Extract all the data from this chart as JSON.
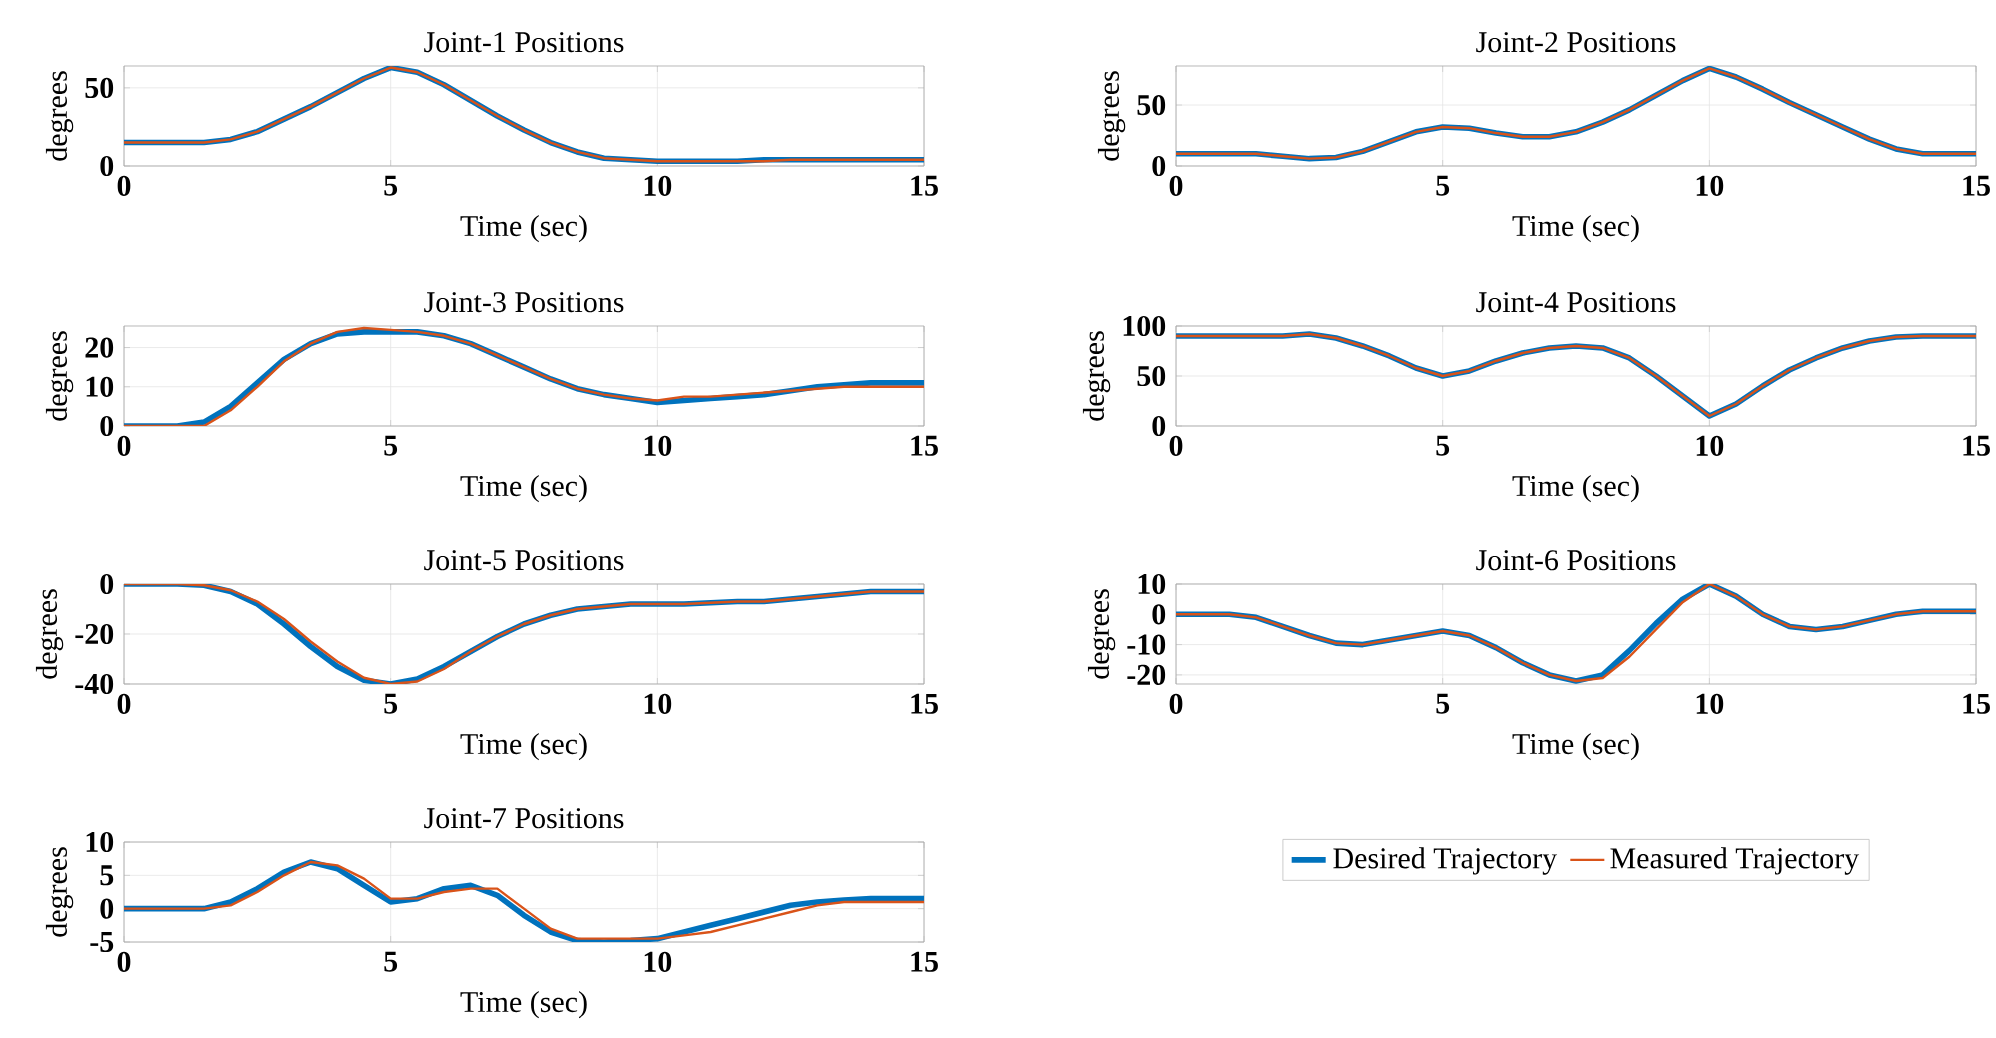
{
  "chart_data": [
    {
      "type": "line",
      "title": "Joint-1 Positions",
      "xlabel": "Time (sec)",
      "ylabel": "degrees",
      "xlim": [
        0,
        15
      ],
      "ylim": [
        0,
        64
      ],
      "xticks": [
        0,
        5,
        10,
        15
      ],
      "yticks": [
        0,
        50
      ],
      "grid": true,
      "x": [
        0,
        0.5,
        1,
        1.5,
        2,
        2.5,
        3,
        3.5,
        4,
        4.5,
        5,
        5.5,
        6,
        6.5,
        7,
        7.5,
        8,
        8.5,
        9,
        9.5,
        10,
        10.5,
        11,
        11.5,
        12,
        12.5,
        13,
        13.5,
        14,
        14.5,
        15
      ],
      "series": [
        {
          "color": "#0072bd",
          "values": [
            15,
            15,
            15,
            15,
            17,
            22,
            30,
            38,
            47,
            56,
            63,
            60,
            52,
            42,
            32,
            23,
            15,
            9,
            5,
            4,
            3,
            3,
            3,
            3,
            4,
            4,
            4,
            4,
            4,
            4,
            4
          ]
        },
        {
          "color": "#d95319",
          "values": [
            15,
            15,
            15,
            15,
            17,
            22,
            30,
            38,
            47,
            56,
            63,
            60,
            52,
            42,
            32,
            23,
            15,
            9,
            5,
            4,
            3,
            3,
            3,
            3,
            3,
            4,
            4,
            4,
            4,
            4,
            4
          ]
        }
      ]
    },
    {
      "type": "line",
      "title": "Joint-2 Positions",
      "xlabel": "Time (sec)",
      "ylabel": "degrees",
      "xlim": [
        0,
        15
      ],
      "ylim": [
        0,
        82
      ],
      "xticks": [
        0,
        5,
        10,
        15
      ],
      "yticks": [
        0,
        50
      ],
      "grid": true,
      "x": [
        0,
        0.5,
        1,
        1.5,
        2,
        2.5,
        3,
        3.5,
        4,
        4.5,
        5,
        5.5,
        6,
        6.5,
        7,
        7.5,
        8,
        8.5,
        9,
        9.5,
        10,
        10.5,
        11,
        11.5,
        12,
        12.5,
        13,
        13.5,
        14,
        14.5,
        15
      ],
      "series": [
        {
          "color": "#0072bd",
          "values": [
            10,
            10,
            10,
            10,
            8,
            6,
            7,
            12,
            20,
            28,
            32,
            31,
            27,
            24,
            24,
            28,
            36,
            46,
            58,
            70,
            80,
            73,
            63,
            52,
            42,
            32,
            22,
            14,
            10,
            10,
            10
          ]
        },
        {
          "color": "#d95319",
          "values": [
            10,
            10,
            10,
            10,
            8,
            6,
            7,
            12,
            20,
            28,
            32,
            31,
            27,
            24,
            24,
            28,
            36,
            46,
            58,
            70,
            80,
            73,
            63,
            52,
            42,
            32,
            22,
            14,
            10,
            10,
            10
          ]
        }
      ]
    },
    {
      "type": "line",
      "title": "Joint-3 Positions",
      "xlabel": "Time (sec)",
      "ylabel": "degrees",
      "xlim": [
        0,
        15
      ],
      "ylim": [
        0,
        25.5
      ],
      "xticks": [
        0,
        5,
        10,
        15
      ],
      "yticks": [
        0,
        10,
        20
      ],
      "grid": true,
      "x": [
        0,
        0.5,
        1,
        1.5,
        2,
        2.5,
        3,
        3.5,
        4,
        4.5,
        5,
        5.5,
        6,
        6.5,
        7,
        7.5,
        8,
        8.5,
        9,
        9.5,
        10,
        10.5,
        11,
        11.5,
        12,
        12.5,
        13,
        13.5,
        14,
        14.5,
        15
      ],
      "series": [
        {
          "color": "#0072bd",
          "values": [
            0,
            0,
            0,
            1,
            5,
            11,
            17,
            21,
            23.5,
            24,
            24,
            24,
            23,
            21,
            18,
            15,
            12,
            9.5,
            8,
            7,
            6,
            6.5,
            7,
            7.5,
            8,
            9,
            10,
            10.5,
            11,
            11,
            11
          ]
        },
        {
          "color": "#d95319",
          "values": [
            0,
            0,
            0,
            0,
            4,
            10,
            16.5,
            21,
            24,
            25,
            24.5,
            24,
            23,
            21,
            18,
            15,
            12,
            9.5,
            8,
            7,
            6.5,
            7.5,
            7.5,
            8,
            8.5,
            9,
            9.5,
            10,
            10,
            10,
            10
          ]
        }
      ]
    },
    {
      "type": "line",
      "title": "Joint-4 Positions",
      "xlabel": "Time (sec)",
      "ylabel": "degrees",
      "xlim": [
        0,
        15
      ],
      "ylim": [
        0,
        100
      ],
      "xticks": [
        0,
        5,
        10,
        15
      ],
      "yticks": [
        0,
        50,
        100
      ],
      "grid": true,
      "x": [
        0,
        0.5,
        1,
        1.5,
        2,
        2.5,
        3,
        3.5,
        4,
        4.5,
        5,
        5.5,
        6,
        6.5,
        7,
        7.5,
        8,
        8.5,
        9,
        9.5,
        10,
        10.5,
        11,
        11.5,
        12,
        12.5,
        13,
        13.5,
        14,
        14.5,
        15
      ],
      "series": [
        {
          "color": "#0072bd",
          "values": [
            90,
            90,
            90,
            90,
            90,
            92,
            88,
            80,
            70,
            58,
            50,
            55,
            65,
            73,
            78,
            80,
            78,
            68,
            50,
            30,
            10,
            22,
            40,
            56,
            68,
            78,
            85,
            89,
            90,
            90,
            90
          ]
        },
        {
          "color": "#d95319",
          "values": [
            90,
            90,
            90,
            90,
            90,
            92,
            88,
            80,
            70,
            58,
            50,
            55,
            65,
            73,
            78,
            80,
            78,
            68,
            50,
            30,
            10,
            22,
            40,
            56,
            68,
            78,
            85,
            89,
            90,
            90,
            90
          ]
        }
      ]
    },
    {
      "type": "line",
      "title": "Joint-5 Positions",
      "xlabel": "Time (sec)",
      "ylabel": "degrees",
      "xlim": [
        0,
        15
      ],
      "ylim": [
        -40,
        0
      ],
      "xticks": [
        0,
        5,
        10,
        15
      ],
      "yticks": [
        -40,
        -20,
        0
      ],
      "grid": true,
      "x": [
        0,
        0.5,
        1,
        1.5,
        2,
        2.5,
        3,
        3.5,
        4,
        4.5,
        5,
        5.5,
        6,
        6.5,
        7,
        7.5,
        8,
        8.5,
        9,
        9.5,
        10,
        10.5,
        11,
        11.5,
        12,
        12.5,
        13,
        13.5,
        14,
        14.5,
        15
      ],
      "series": [
        {
          "color": "#0072bd",
          "values": [
            0,
            0,
            0,
            -0.5,
            -3,
            -8,
            -16,
            -25,
            -33,
            -38.5,
            -40,
            -38,
            -33,
            -27,
            -21,
            -16,
            -12.5,
            -10,
            -9,
            -8,
            -8,
            -8,
            -7.5,
            -7,
            -7,
            -6,
            -5,
            -4,
            -3,
            -3,
            -3
          ]
        },
        {
          "color": "#d95319",
          "values": [
            0,
            0,
            0,
            -0.5,
            -2.5,
            -7,
            -14,
            -23,
            -31,
            -37.5,
            -40,
            -39,
            -34,
            -27,
            -21,
            -16,
            -12.5,
            -10,
            -9,
            -8,
            -8,
            -8,
            -7.5,
            -7,
            -7,
            -6,
            -5,
            -4,
            -3,
            -3,
            -3
          ]
        }
      ]
    },
    {
      "type": "line",
      "title": "Joint-6 Positions",
      "xlabel": "Time (sec)",
      "ylabel": "degrees",
      "xlim": [
        0,
        15
      ],
      "ylim": [
        -23,
        10
      ],
      "xticks": [
        0,
        5,
        10,
        15
      ],
      "yticks": [
        -20,
        -10,
        0,
        10
      ],
      "grid": true,
      "legend": "bottom",
      "x": [
        0,
        0.5,
        1,
        1.5,
        2,
        2.5,
        3,
        3.5,
        4,
        4.5,
        5,
        5.5,
        6,
        6.5,
        7,
        7.5,
        8,
        8.5,
        9,
        9.5,
        10,
        10.5,
        11,
        11.5,
        12,
        12.5,
        13,
        13.5,
        14,
        14.5,
        15
      ],
      "series": [
        {
          "name": "Desired Trajectory",
          "color": "#0072bd",
          "values": [
            0,
            0,
            0,
            -1,
            -4,
            -7,
            -9.5,
            -10,
            -8.5,
            -7,
            -5.5,
            -7,
            -11,
            -16,
            -20,
            -22,
            -20,
            -12,
            -3,
            5,
            10,
            6,
            0,
            -4,
            -5,
            -4,
            -2,
            0,
            1,
            1,
            1
          ]
        },
        {
          "name": "Measured Trajectory",
          "color": "#d95319",
          "values": [
            0,
            0,
            0,
            -1,
            -4,
            -7,
            -9.5,
            -10,
            -8.5,
            -7,
            -5.5,
            -7,
            -11,
            -16,
            -20,
            -22,
            -21,
            -14,
            -5,
            4,
            10,
            6,
            0,
            -4,
            -5,
            -4,
            -2,
            0,
            1,
            1,
            1
          ]
        }
      ]
    },
    {
      "type": "line",
      "title": "Joint-7 Positions",
      "xlabel": "Time (sec)",
      "ylabel": "degrees",
      "xlim": [
        0,
        15
      ],
      "ylim": [
        -5,
        10
      ],
      "xticks": [
        0,
        5,
        10,
        15
      ],
      "yticks": [
        -5,
        0,
        5,
        10
      ],
      "grid": true,
      "x": [
        0,
        0.5,
        1,
        1.5,
        2,
        2.5,
        3,
        3.5,
        4,
        4.5,
        5,
        5.5,
        6,
        6.5,
        7,
        7.5,
        8,
        8.5,
        9,
        9.5,
        10,
        10.5,
        11,
        11.5,
        12,
        12.5,
        13,
        13.5,
        14,
        14.5,
        15
      ],
      "series": [
        {
          "color": "#0072bd",
          "values": [
            0,
            0,
            0,
            0,
            1,
            3,
            5.5,
            7,
            6,
            3.5,
            1,
            1.5,
            3,
            3.5,
            2,
            -1,
            -3.5,
            -4.8,
            -5,
            -4.8,
            -4.5,
            -3.5,
            -2.5,
            -1.5,
            -0.5,
            0.5,
            1,
            1.3,
            1.5,
            1.5,
            1.5
          ]
        },
        {
          "color": "#d95319",
          "values": [
            0,
            0,
            0,
            0,
            0.5,
            2.5,
            5,
            7,
            6.5,
            4.5,
            1.5,
            1.5,
            2.5,
            3,
            3,
            0,
            -3,
            -4.5,
            -4.5,
            -4.5,
            -4.5,
            -4,
            -3.5,
            -2.5,
            -1.5,
            -0.5,
            0.5,
            1,
            1,
            1,
            1
          ]
        }
      ]
    }
  ]
}
